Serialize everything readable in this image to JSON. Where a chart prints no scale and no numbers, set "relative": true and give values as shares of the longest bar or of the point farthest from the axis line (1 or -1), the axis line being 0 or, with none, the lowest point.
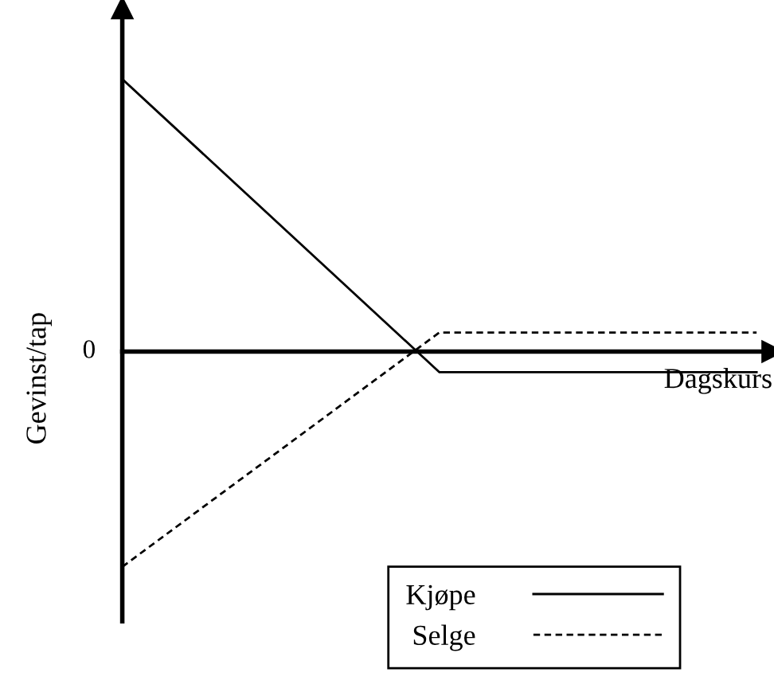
{
  "chart_data": {
    "type": "line",
    "relative": true,
    "xlabel": "Dagskurs",
    "ylabel": "Gevinst/tap",
    "categories": [
      null,
      null,
      null
    ],
    "series": [
      {
        "name": "Kjøpe",
        "color": "#000000",
        "line_style": "solid",
        "values": [
          1,
          -0.076,
          -0.076
        ]
      },
      {
        "name": "Selge",
        "color": "#000000",
        "line_style": "dashed",
        "values": [
          -0.79,
          0.07,
          0.07
        ]
      }
    ],
    "annotations": [
      "0"
    ],
    "legend": "bottom right",
    "marker": "none"
  }
}
